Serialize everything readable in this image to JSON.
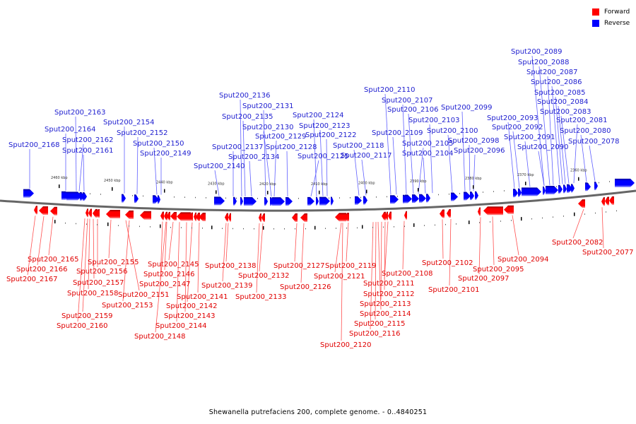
{
  "legend": {
    "items": [
      {
        "label": "Forward",
        "color": "#ff0000"
      },
      {
        "label": "Reverse",
        "color": "#0000ff"
      }
    ]
  },
  "caption": "Shewanella putrefaciens 200, complete genome. - 0..4840251",
  "colors": {
    "forward": "#ff0000",
    "forward_dark": "#990000",
    "forward_light": "#ff9999",
    "reverse": "#0000ff",
    "reverse_dark": "#000099",
    "reverse_light": "#9999ff",
    "forward_label": "#e00000",
    "reverse_label": "#2020d0",
    "backbone": "#666666"
  },
  "chart_data": {
    "type": "genome-map",
    "title": "Shewanella putrefaciens 200, complete genome. - 0..4840251",
    "axis_unit": "kbp",
    "axis_direction": "decreasing-left-to-right",
    "axis_ticks": [
      "2460 kbp",
      "2450 kbp",
      "2440 kbp",
      "2430 kbp",
      "2420 kbp",
      "2410 kbp",
      "2400 kbp",
      "2390 kbp",
      "2380 kbp",
      "2370 kbp",
      "2360 kbp"
    ],
    "reverse_genes": [
      "Sput200_2168",
      "Sput200_2164",
      "Sput200_2163",
      "Sput200_2162",
      "Sput200_2161",
      "Sput200_2154",
      "Sput200_2152",
      "Sput200_2150",
      "Sput200_2149",
      "Sput200_2140",
      "Sput200_2137",
      "Sput200_2136",
      "Sput200_2135",
      "Sput200_2134",
      "Sput200_2131",
      "Sput200_2130",
      "Sput200_2129",
      "Sput200_2128",
      "Sput200_2125",
      "Sput200_2124",
      "Sput200_2123",
      "Sput200_2122",
      "Sput200_2118",
      "Sput200_2117",
      "Sput200_2110",
      "Sput200_2109",
      "Sput200_2107",
      "Sput200_2106",
      "Sput200_2105",
      "Sput200_2104",
      "Sput200_2103",
      "Sput200_2100",
      "Sput200_2099",
      "Sput200_2098",
      "Sput200_2096",
      "Sput200_2093",
      "Sput200_2092",
      "Sput200_2091",
      "Sput200_2090",
      "Sput200_2089",
      "Sput200_2088",
      "Sput200_2087",
      "Sput200_2086",
      "Sput200_2085",
      "Sput200_2084",
      "Sput200_2083",
      "Sput200_2081",
      "Sput200_2080",
      "Sput200_2078"
    ],
    "forward_genes": [
      "Sput200_2167",
      "Sput200_2166",
      "Sput200_2165",
      "Sput200_2160",
      "Sput200_2159",
      "Sput200_2158",
      "Sput200_2157",
      "Sput200_2156",
      "Sput200_2155",
      "Sput200_2153",
      "Sput200_2151",
      "Sput200_2148",
      "Sput200_2147",
      "Sput200_2146",
      "Sput200_2145",
      "Sput200_2144",
      "Sput200_2143",
      "Sput200_2142",
      "Sput200_2141",
      "Sput200_2139",
      "Sput200_2138",
      "Sput200_2133",
      "Sput200_2132",
      "Sput200_2127",
      "Sput200_2126",
      "Sput200_2121",
      "Sput200_2120",
      "Sput200_2119",
      "Sput200_2116",
      "Sput200_2115",
      "Sput200_2114",
      "Sput200_2113",
      "Sput200_2112",
      "Sput200_2111",
      "Sput200_2108",
      "Sput200_2102",
      "Sput200_2101",
      "Sput200_2097",
      "Sput200_2095",
      "Sput200_2094",
      "Sput200_2082",
      "Sput200_2077"
    ]
  },
  "reverse_labels": [
    {
      "text": "Sput200_2168"
    },
    {
      "text": "Sput200_2164"
    },
    {
      "text": "Sput200_2163"
    },
    {
      "text": "Sput200_2162"
    },
    {
      "text": "Sput200_2161"
    },
    {
      "text": "Sput200_2154"
    },
    {
      "text": "Sput200_2152"
    },
    {
      "text": "Sput200_2150"
    },
    {
      "text": "Sput200_2149"
    },
    {
      "text": "Sput200_2140"
    },
    {
      "text": "Sput200_2137"
    },
    {
      "text": "Sput200_2136"
    },
    {
      "text": "Sput200_2135"
    },
    {
      "text": "Sput200_2134"
    },
    {
      "text": "Sput200_2131"
    },
    {
      "text": "Sput200_2130"
    },
    {
      "text": "Sput200_2129"
    },
    {
      "text": "Sput200_2128"
    },
    {
      "text": "Sput200_2125"
    },
    {
      "text": "Sput200_2124"
    },
    {
      "text": "Sput200_2123"
    },
    {
      "text": "Sput200_2122"
    },
    {
      "text": "Sput200_2118"
    },
    {
      "text": "Sput200_2117"
    },
    {
      "text": "Sput200_2110"
    },
    {
      "text": "Sput200_2109"
    },
    {
      "text": "Sput200_2107"
    },
    {
      "text": "Sput200_2106"
    },
    {
      "text": "Sput200_2105"
    },
    {
      "text": "Sput200_2104"
    },
    {
      "text": "Sput200_2103"
    },
    {
      "text": "Sput200_2100"
    },
    {
      "text": "Sput200_2099"
    },
    {
      "text": "Sput200_2098"
    },
    {
      "text": "Sput200_2096"
    },
    {
      "text": "Sput200_2093"
    },
    {
      "text": "Sput200_2092"
    },
    {
      "text": "Sput200_2091"
    },
    {
      "text": "Sput200_2090"
    },
    {
      "text": "Sput200_2089"
    },
    {
      "text": "Sput200_2088"
    },
    {
      "text": "Sput200_2087"
    },
    {
      "text": "Sput200_2086"
    },
    {
      "text": "Sput200_2085"
    },
    {
      "text": "Sput200_2084"
    },
    {
      "text": "Sput200_2083"
    },
    {
      "text": "Sput200_2081"
    },
    {
      "text": "Sput200_2080"
    },
    {
      "text": "Sput200_2078"
    }
  ],
  "forward_labels": [
    {
      "text": "Sput200_2165"
    },
    {
      "text": "Sput200_2166"
    },
    {
      "text": "Sput200_2167"
    },
    {
      "text": "Sput200_2155"
    },
    {
      "text": "Sput200_2156"
    },
    {
      "text": "Sput200_2157"
    },
    {
      "text": "Sput200_2158"
    },
    {
      "text": "Sput200_2159"
    },
    {
      "text": "Sput200_2160"
    },
    {
      "text": "Sput200_2151"
    },
    {
      "text": "Sput200_2153"
    },
    {
      "text": "Sput200_2145"
    },
    {
      "text": "Sput200_2146"
    },
    {
      "text": "Sput200_2147"
    },
    {
      "text": "Sput200_2141"
    },
    {
      "text": "Sput200_2142"
    },
    {
      "text": "Sput200_2143"
    },
    {
      "text": "Sput200_2144"
    },
    {
      "text": "Sput200_2148"
    },
    {
      "text": "Sput200_2138"
    },
    {
      "text": "Sput200_2139"
    },
    {
      "text": "Sput200_2132"
    },
    {
      "text": "Sput200_2133"
    },
    {
      "text": "Sput200_2127"
    },
    {
      "text": "Sput200_2126"
    },
    {
      "text": "Sput200_2119"
    },
    {
      "text": "Sput200_2121"
    },
    {
      "text": "Sput200_2120"
    },
    {
      "text": "Sput200_2108"
    },
    {
      "text": "Sput200_2111"
    },
    {
      "text": "Sput200_2112"
    },
    {
      "text": "Sput200_2113"
    },
    {
      "text": "Sput200_2114"
    },
    {
      "text": "Sput200_2115"
    },
    {
      "text": "Sput200_2116"
    },
    {
      "text": "Sput200_2102"
    },
    {
      "text": "Sput200_2101"
    },
    {
      "text": "Sput200_2094"
    },
    {
      "text": "Sput200_2095"
    },
    {
      "text": "Sput200_2097"
    },
    {
      "text": "Sput200_2082"
    },
    {
      "text": "Sput200_2077"
    }
  ]
}
